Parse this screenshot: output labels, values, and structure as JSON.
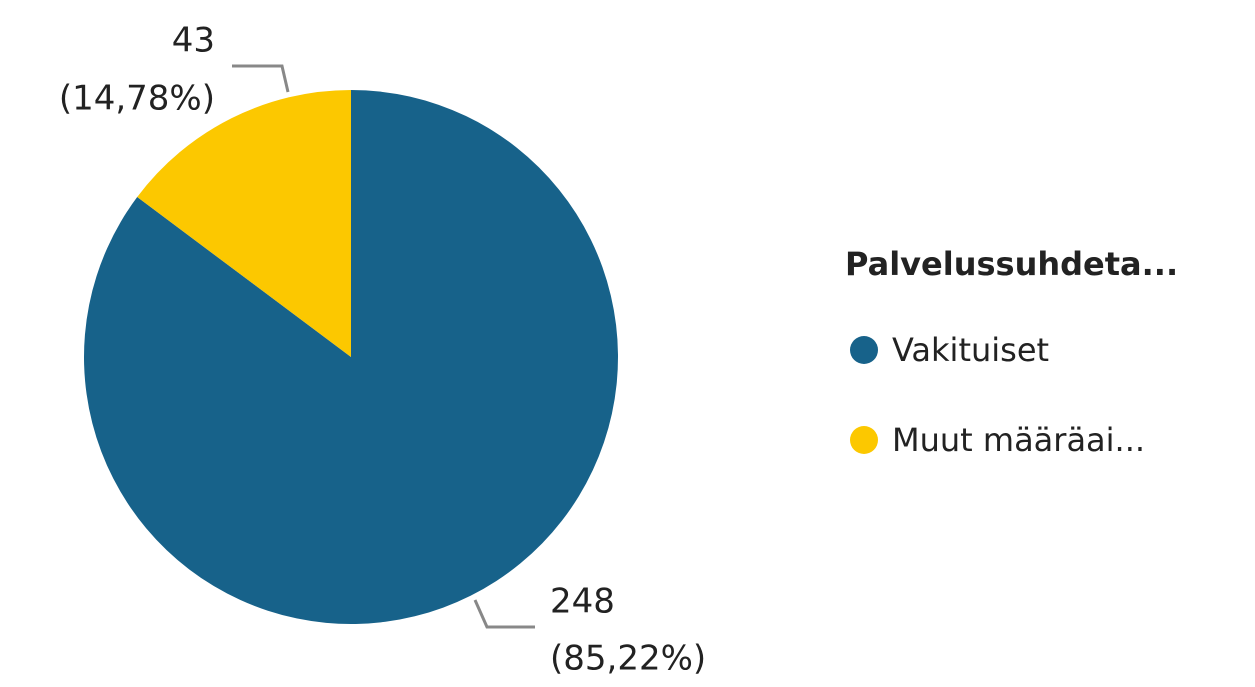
{
  "chart_data": {
    "type": "pie",
    "categories": [
      "Vakituiset",
      "Muut määräai..."
    ],
    "values": [
      248,
      43
    ],
    "percent_labels": [
      "(85,22%)",
      "(14,78%)"
    ],
    "colors": [
      "#17628a",
      "#fcc800"
    ],
    "legend_title": "Palvelussuhdeta...",
    "legend": "right"
  }
}
